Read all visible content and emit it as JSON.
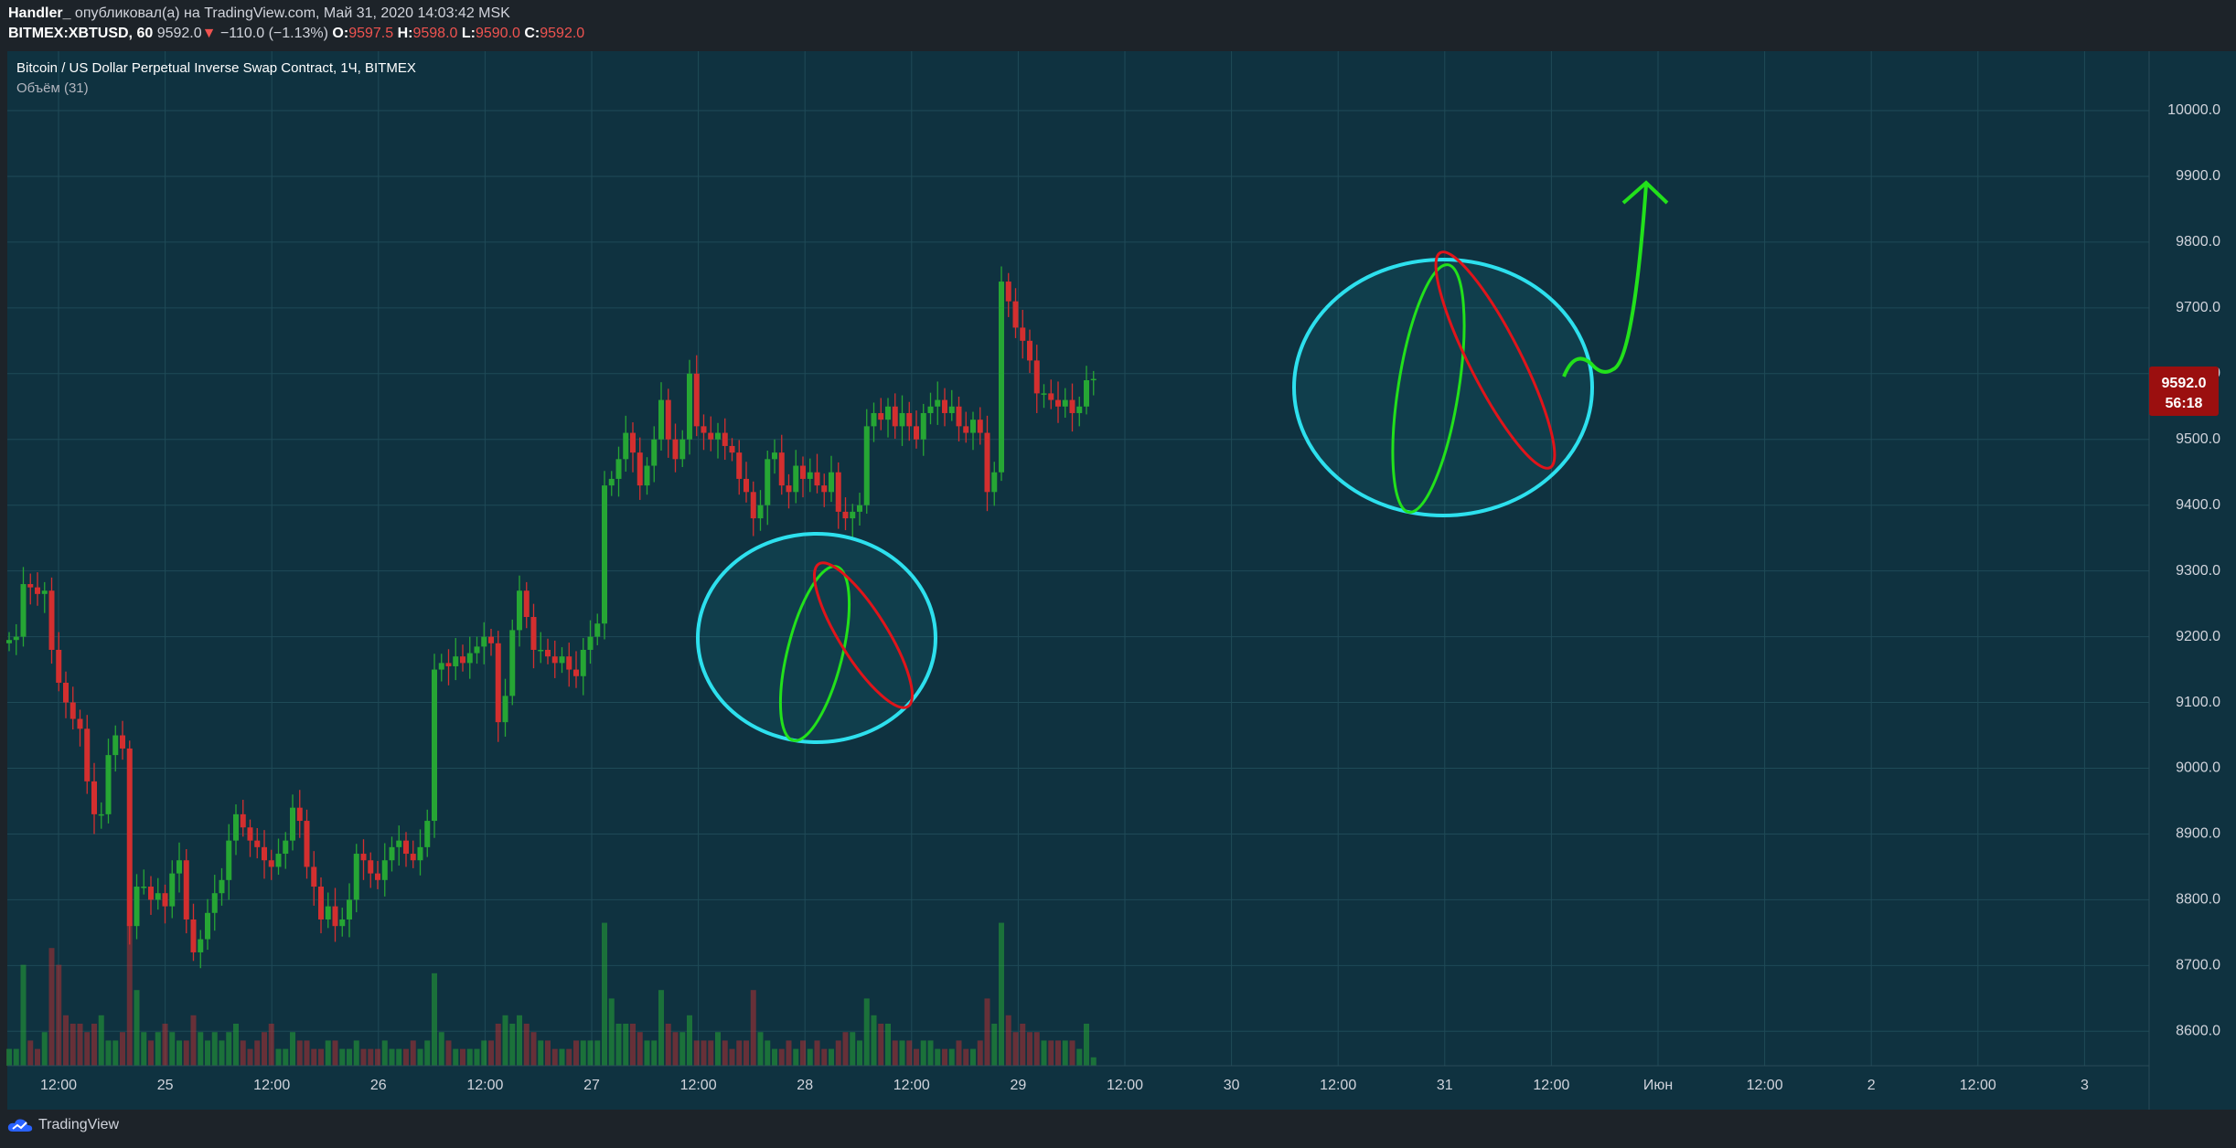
{
  "header": {
    "author": "Handler_",
    "published_text": "опубликовал(а) на TradingView.com, Май 31, 2020 14:03:42 MSK",
    "symbol": "BITMEX:XBTUSD, 60",
    "last": "9592.0",
    "change_arrow": "▼",
    "change": "−110.0 (−1.13%)",
    "o_label": "O:",
    "o_val": "9597.5",
    "h_label": "H:",
    "h_val": "9598.0",
    "l_label": "L:",
    "l_val": "9590.0",
    "c_label": "C:",
    "c_val": "9592.0"
  },
  "legend": {
    "title": "Bitcoin / US Dollar Perpetual Inverse Swap Contract, 1Ч, BITMEX",
    "volume": "Объём (31)"
  },
  "footer": {
    "brand": "TradingView"
  },
  "price_badge": {
    "price": "9592.0",
    "countdown": "56:18"
  },
  "colors": {
    "bg": "#0f3240",
    "grid": "#1f4a57",
    "up": "#26a634",
    "down": "#d32f2f",
    "cyan_circle": "#2de0ee",
    "green_annot": "#22e11b",
    "red_annot": "#e0141a"
  },
  "chart_data": {
    "type": "candlestick",
    "title": "Bitcoin / US Dollar Perpetual Inverse Swap Contract, 1Ч, BITMEX",
    "xlabel": "",
    "ylabel": "",
    "ylim": [
      8550,
      10050
    ],
    "y_ticks": [
      "10000.0",
      "9900.0",
      "9800.0",
      "9700.0",
      "9600.0",
      "9500.0",
      "9400.0",
      "9300.0",
      "9200.0",
      "9100.0",
      "9000.0",
      "8900.0",
      "8800.0",
      "8700.0",
      "8600.0"
    ],
    "x_ticks": [
      "12:00",
      "25",
      "12:00",
      "26",
      "12:00",
      "27",
      "12:00",
      "28",
      "12:00",
      "29",
      "12:00",
      "30",
      "12:00",
      "31",
      "12:00",
      "Июн",
      "12:00",
      "2",
      "12:00",
      "3"
    ],
    "interval": "1h",
    "close_series": [
      9195,
      9200,
      9280,
      9275,
      9265,
      9270,
      9180,
      9130,
      9100,
      9075,
      9060,
      8980,
      8930,
      8930,
      9020,
      9050,
      9030,
      8760,
      8820,
      8820,
      8800,
      8810,
      8790,
      8840,
      8860,
      8770,
      8720,
      8740,
      8780,
      8810,
      8830,
      8890,
      8930,
      8910,
      8890,
      8880,
      8860,
      8850,
      8870,
      8890,
      8940,
      8920,
      8850,
      8820,
      8770,
      8790,
      8760,
      8770,
      8800,
      8870,
      8860,
      8840,
      8830,
      8860,
      8880,
      8890,
      8870,
      8860,
      8880,
      8920,
      9150,
      9160,
      9155,
      9170,
      9160,
      9175,
      9185,
      9200,
      9190,
      9070,
      9110,
      9210,
      9270,
      9230,
      9180,
      9180,
      9170,
      9160,
      9170,
      9150,
      9140,
      9180,
      9200,
      9220,
      9430,
      9440,
      9470,
      9510,
      9480,
      9430,
      9460,
      9500,
      9560,
      9500,
      9470,
      9500,
      9600,
      9520,
      9510,
      9500,
      9510,
      9490,
      9480,
      9440,
      9420,
      9380,
      9400,
      9470,
      9480,
      9430,
      9420,
      9460,
      9440,
      9450,
      9430,
      9420,
      9450,
      9390,
      9380,
      9390,
      9400,
      9520,
      9540,
      9530,
      9550,
      9520,
      9540,
      9520,
      9500,
      9540,
      9550,
      9560,
      9540,
      9550,
      9520,
      9510,
      9530,
      9510,
      9420,
      9450,
      9740,
      9710,
      9670,
      9650,
      9620,
      9570,
      9570,
      9560,
      9550,
      9560,
      9540,
      9550,
      9590,
      9592
    ],
    "volume_series": [
      2,
      2,
      12,
      3,
      2,
      4,
      14,
      12,
      6,
      5,
      5,
      4,
      5,
      6,
      3,
      3,
      4,
      17,
      9,
      4,
      3,
      4,
      5,
      4,
      3,
      3,
      6,
      4,
      3,
      4,
      3,
      4,
      5,
      3,
      2,
      3,
      4,
      5,
      2,
      2,
      4,
      3,
      3,
      2,
      2,
      3,
      3,
      2,
      2,
      3,
      2,
      2,
      2,
      3,
      2,
      2,
      2,
      3,
      2,
      3,
      11,
      4,
      3,
      2,
      2,
      2,
      2,
      3,
      3,
      5,
      6,
      5,
      6,
      5,
      4,
      3,
      3,
      2,
      2,
      2,
      3,
      3,
      3,
      3,
      17,
      8,
      5,
      5,
      5,
      4,
      3,
      3,
      9,
      5,
      4,
      4,
      6,
      3,
      3,
      3,
      4,
      3,
      2,
      3,
      3,
      9,
      4,
      3,
      2,
      2,
      3,
      2,
      3,
      2,
      3,
      2,
      2,
      3,
      4,
      4,
      3,
      8,
      6,
      5,
      5,
      3,
      3,
      3,
      2,
      3,
      3,
      2,
      2,
      2,
      3,
      2,
      2,
      3,
      8,
      5,
      17,
      6,
      4,
      5,
      4,
      4,
      3,
      3,
      3,
      3,
      3,
      2,
      5,
      1
    ]
  }
}
